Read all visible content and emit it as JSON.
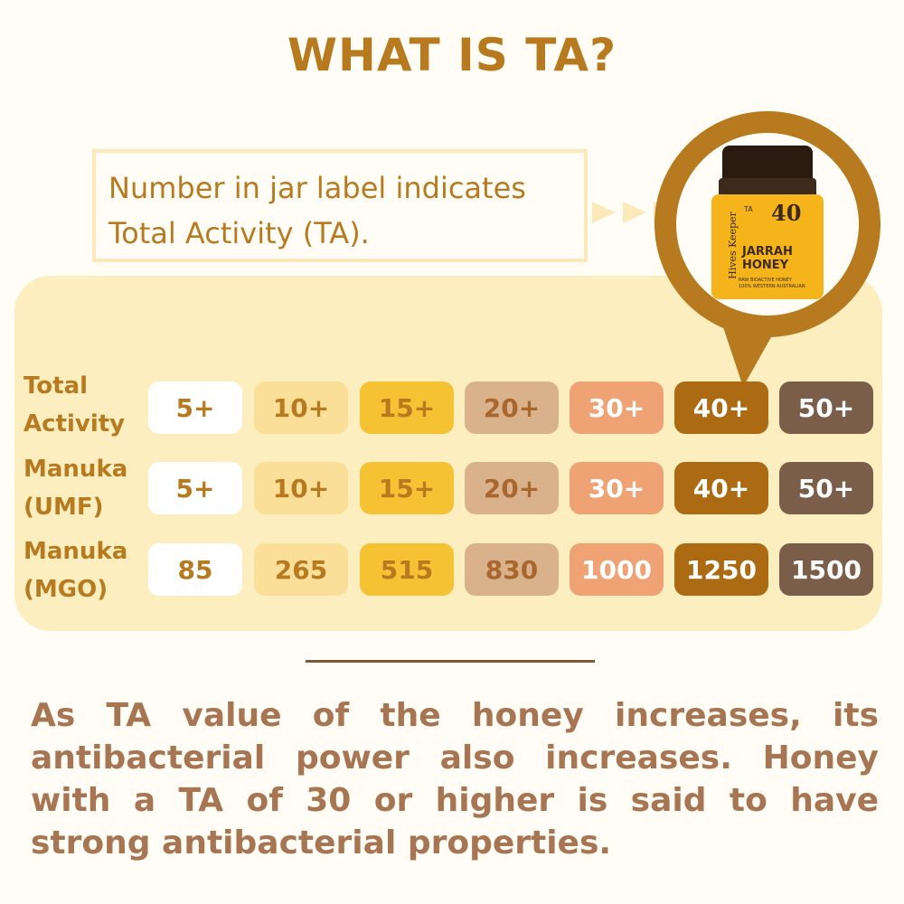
{
  "title": "WHAT IS TA?",
  "callout": {
    "line1": "Number in jar label indicates",
    "line2": "Total Activity (TA)."
  },
  "jar": {
    "brand": "Hives Keeper",
    "ta_label": "TA",
    "ta_value": "40",
    "name_line1": "JARRAH",
    "name_line2": "HONEY",
    "sub_line1": "RAW BIOACTIVE HONEY",
    "sub_line2": "100% WESTERN AUSTRALIAN"
  },
  "table": {
    "rows": [
      {
        "label_line1": "Total",
        "label_line2": "Activity",
        "values": [
          "5+",
          "10+",
          "15+",
          "20+",
          "30+",
          "40+",
          "50+"
        ]
      },
      {
        "label_line1": "Manuka",
        "label_line2": "(UMF)",
        "values": [
          "5+",
          "10+",
          "15+",
          "20+",
          "30+",
          "40+",
          "50+"
        ]
      },
      {
        "label_line1": "Manuka",
        "label_line2": "(MGO)",
        "values": [
          "85",
          "265",
          "515",
          "830",
          "1000",
          "1250",
          "1500"
        ]
      }
    ],
    "column_colors": [
      {
        "bg": "#ffffff",
        "fg": "#b77a1f"
      },
      {
        "bg": "#fbdf98",
        "fg": "#b77a1f"
      },
      {
        "bg": "#f4c233",
        "fg": "#b77a1f"
      },
      {
        "bg": "#d9b28c",
        "fg": "#a9672e"
      },
      {
        "bg": "#efa374",
        "fg": "#ffffff"
      },
      {
        "bg": "#ac6b12",
        "fg": "#ffffff"
      },
      {
        "bg": "#7a5e49",
        "fg": "#ffffff"
      }
    ]
  },
  "paragraph": "As TA value of the honey increases, its antibacterial power also increases. Honey with a TA of 30 or higher is said to have strong antibacterial properties.",
  "colors": {
    "accent": "#b77a1f",
    "panel": "#fdeebf",
    "body_text": "#a87552"
  }
}
